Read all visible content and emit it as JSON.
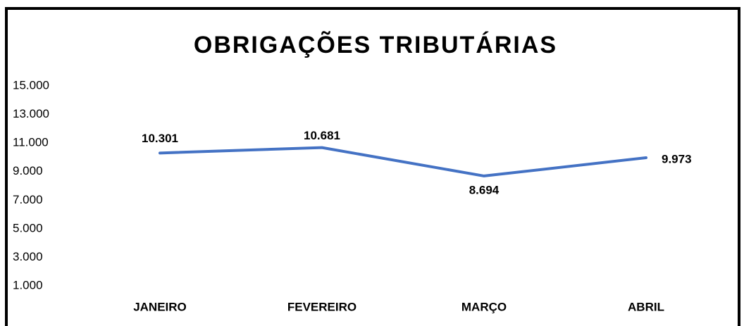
{
  "chart_data": {
    "type": "line",
    "title": "OBRIGAÇÕES TRIBUTÁRIAS",
    "categories": [
      "JANEIRO",
      "FEVEREIRO",
      "MARÇO",
      "ABRIL"
    ],
    "values": [
      10301,
      10681,
      8694,
      9973
    ],
    "value_labels": [
      "10.301",
      "10.681",
      "8.694",
      "9.973"
    ],
    "color": "#4472c4",
    "ylim": [
      1000,
      15000
    ],
    "yticks": [
      {
        "value": 1000,
        "label": "1.000"
      },
      {
        "value": 3000,
        "label": "3.000"
      },
      {
        "value": 5000,
        "label": "5.000"
      },
      {
        "value": 7000,
        "label": "7.000"
      },
      {
        "value": 9000,
        "label": "9.000"
      },
      {
        "value": 11000,
        "label": "11.000"
      },
      {
        "value": 13000,
        "label": "13.000"
      },
      {
        "value": 15000,
        "label": "15.000"
      }
    ],
    "grid": false
  }
}
